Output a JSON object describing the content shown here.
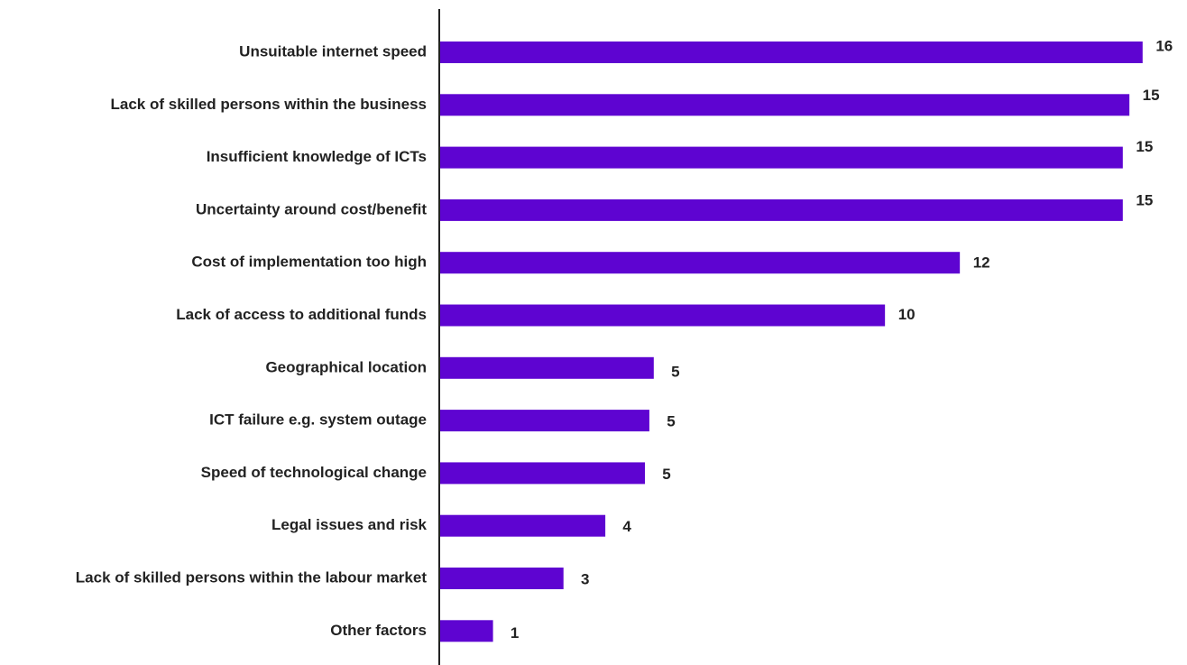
{
  "chart_data": {
    "type": "bar",
    "orientation": "horizontal",
    "categories": [
      "Unsuitable internet speed",
      "Lack of skilled persons within the business",
      "Insufficient knowledge of ICTs",
      "Uncertainty around cost/benefit",
      "Cost of implementation too high",
      "Lack of access to additional funds",
      "Geographical location",
      "ICT failure e.g. system outage",
      "Speed of technological change",
      "Legal issues and risk",
      "Lack of skilled persons within the labour market",
      "Other factors"
    ],
    "values": [
      16,
      15,
      15,
      15,
      12,
      10,
      5,
      5,
      5,
      4,
      3,
      1
    ],
    "bar_length_values": [
      15.95,
      15.65,
      15.5,
      15.5,
      11.8,
      10.1,
      4.85,
      4.75,
      4.65,
      3.75,
      2.8,
      1.2
    ],
    "value_labels": [
      "16",
      "15",
      "15",
      "15",
      "12",
      "10",
      "5",
      "5",
      "5",
      "4",
      "3",
      "1"
    ],
    "title": "",
    "xlabel": "",
    "ylabel": "",
    "xlim": [
      0,
      16.2
    ],
    "grid": false,
    "legend": "none",
    "bar_color": "#5e04d1",
    "axis_color": "#222222",
    "text_color": "#222222"
  }
}
